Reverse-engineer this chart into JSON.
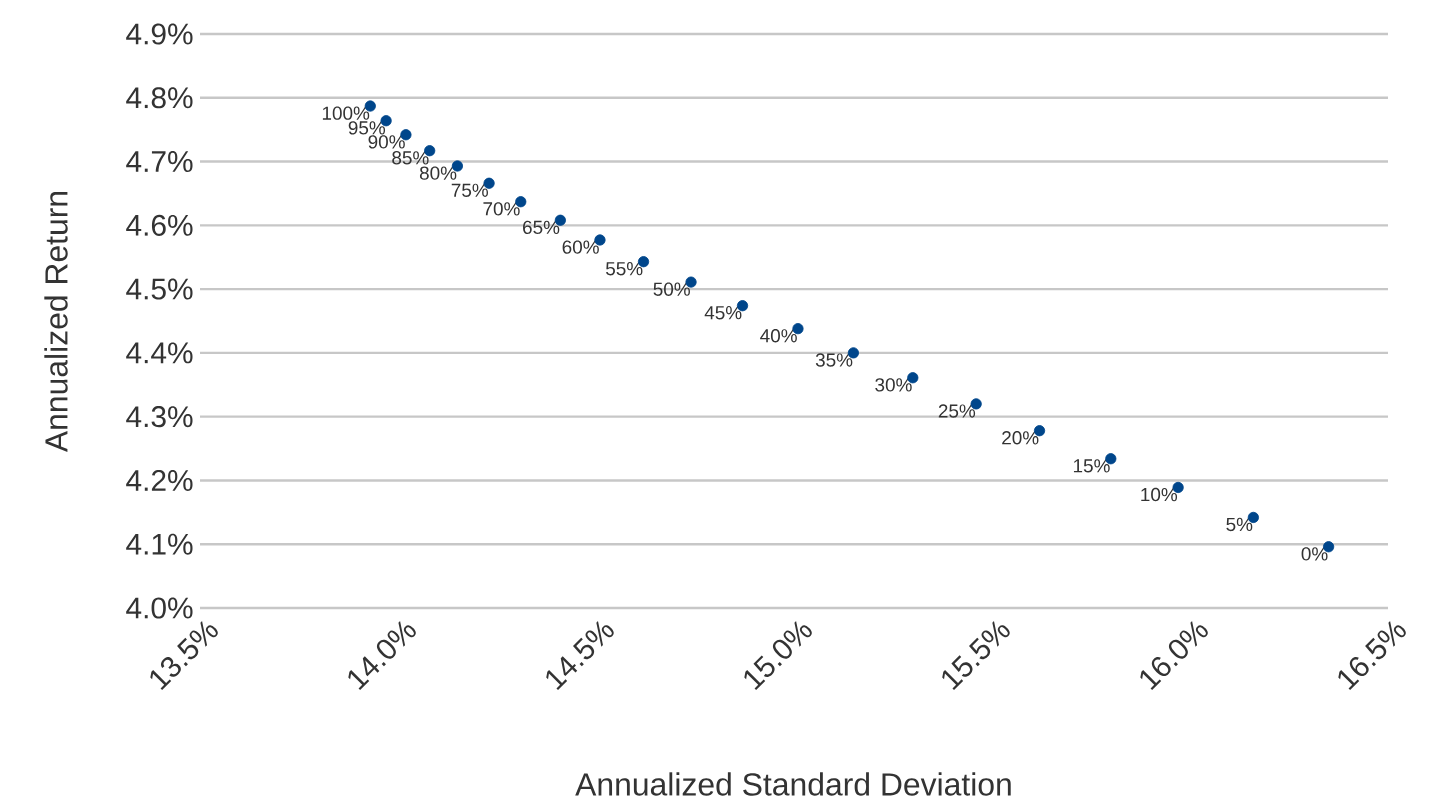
{
  "chart_data": {
    "type": "scatter",
    "xlabel": "Annualized Standard Deviation",
    "ylabel": "Annualized Return",
    "x": [
      13.93,
      13.97,
      14.02,
      14.08,
      14.15,
      14.23,
      14.31,
      14.41,
      14.51,
      14.62,
      14.74,
      14.87,
      15.01,
      15.15,
      15.3,
      15.46,
      15.62,
      15.8,
      15.97,
      16.16,
      16.35
    ],
    "series": [
      {
        "color": "#00468b",
        "values": [
          4.787,
          4.764,
          4.742,
          4.717,
          4.693,
          4.666,
          4.637,
          4.608,
          4.577,
          4.543,
          4.511,
          4.474,
          4.438,
          4.4,
          4.361,
          4.32,
          4.278,
          4.234,
          4.189,
          4.142,
          4.096
        ]
      }
    ],
    "annotations": [
      {
        "text": "100%",
        "x": 13.93,
        "y": 4.787
      },
      {
        "text": "95%",
        "x": 13.97,
        "y": 4.764
      },
      {
        "text": "90%",
        "x": 14.02,
        "y": 4.742
      },
      {
        "text": "85%",
        "x": 14.08,
        "y": 4.717
      },
      {
        "text": "80%",
        "x": 14.15,
        "y": 4.693
      },
      {
        "text": "75%",
        "x": 14.23,
        "y": 4.666
      },
      {
        "text": "70%",
        "x": 14.31,
        "y": 4.637
      },
      {
        "text": "65%",
        "x": 14.41,
        "y": 4.608
      },
      {
        "text": "60%",
        "x": 14.51,
        "y": 4.577
      },
      {
        "text": "55%",
        "x": 14.62,
        "y": 4.543
      },
      {
        "text": "50%",
        "x": 14.74,
        "y": 4.511
      },
      {
        "text": "45%",
        "x": 14.87,
        "y": 4.474
      },
      {
        "text": "40%",
        "x": 15.01,
        "y": 4.438
      },
      {
        "text": "35%",
        "x": 15.15,
        "y": 4.4
      },
      {
        "text": "30%",
        "x": 15.3,
        "y": 4.361
      },
      {
        "text": "25%",
        "x": 15.46,
        "y": 4.32
      },
      {
        "text": "20%",
        "x": 15.62,
        "y": 4.278
      },
      {
        "text": "15%",
        "x": 15.8,
        "y": 4.234
      },
      {
        "text": "10%",
        "x": 15.97,
        "y": 4.189
      },
      {
        "text": "5%",
        "x": 16.16,
        "y": 4.142
      },
      {
        "text": "0%",
        "x": 16.35,
        "y": 4.096
      }
    ],
    "xlim": [
      13.5,
      16.5
    ],
    "xticks": [
      {
        "value": 13.5,
        "label": "13.5%"
      },
      {
        "value": 14.0,
        "label": "14.0%"
      },
      {
        "value": 14.5,
        "label": "14.5%"
      },
      {
        "value": 15.0,
        "label": "15.0%"
      },
      {
        "value": 15.5,
        "label": "15.5%"
      },
      {
        "value": 16.0,
        "label": "16.0%"
      },
      {
        "value": 16.5,
        "label": "16.5%"
      }
    ],
    "ylim": [
      4.0,
      4.9
    ],
    "yticks": [
      {
        "value": 4.0,
        "label": "4.0%"
      },
      {
        "value": 4.1,
        "label": "4.1%"
      },
      {
        "value": 4.2,
        "label": "4.2%"
      },
      {
        "value": 4.3,
        "label": "4.3%"
      },
      {
        "value": 4.4,
        "label": "4.4%"
      },
      {
        "value": 4.5,
        "label": "4.5%"
      },
      {
        "value": 4.6,
        "label": "4.6%"
      },
      {
        "value": 4.7,
        "label": "4.7%"
      },
      {
        "value": 4.8,
        "label": "4.8%"
      },
      {
        "value": 4.9,
        "label": "4.9%"
      }
    ],
    "grid": "y",
    "marker": "circle",
    "legend": false
  }
}
